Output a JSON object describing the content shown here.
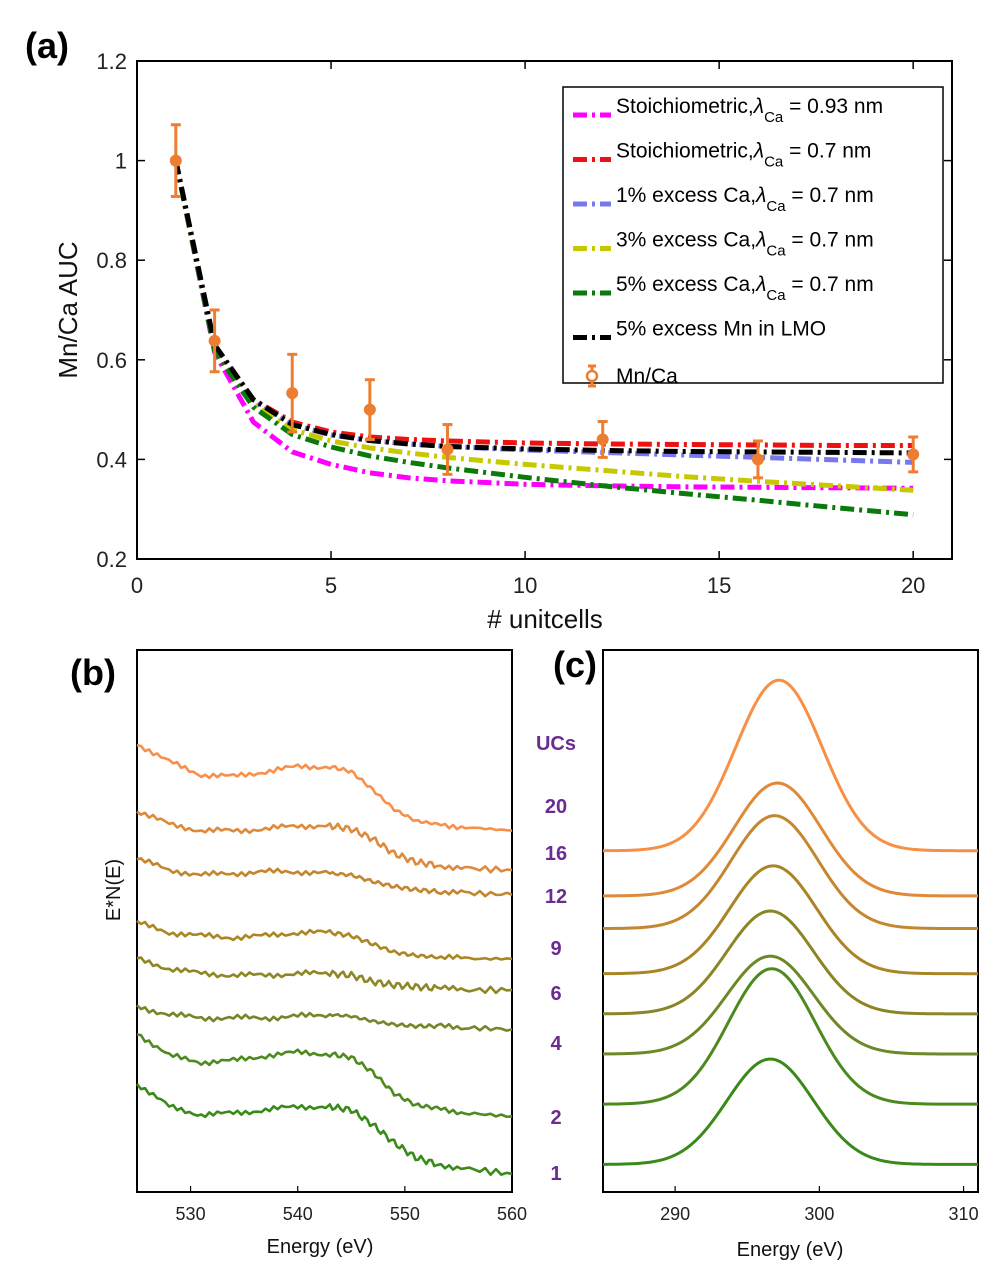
{
  "chart_data": [
    {
      "panel": "(a)",
      "type": "line",
      "xlabel": "# unitcells",
      "ylabel": "Mn/Ca AUC",
      "xlim": [
        0,
        21
      ],
      "ylim": [
        0.2,
        1.2
      ],
      "xticks": [
        "0",
        "5",
        "10",
        "15",
        "20"
      ],
      "yticks": [
        "0.2",
        "0.4",
        "0.6",
        "0.8",
        "1",
        "1.2"
      ],
      "legend_position": "top-right",
      "x": [
        1,
        2,
        3,
        4,
        5,
        6,
        7,
        8,
        10,
        12,
        14,
        16,
        18,
        20
      ],
      "series": [
        {
          "name": "Stoichiometric,",
          "lambda_label": "λ",
          "lambda_sub": "Ca",
          "lambda_value": " = 0.93 nm",
          "color": "#ff00ff",
          "values": [
            1.0,
            0.615,
            0.475,
            0.415,
            0.39,
            0.373,
            0.363,
            0.357,
            0.35,
            0.347,
            0.345,
            0.344,
            0.343,
            0.342
          ]
        },
        {
          "name": "Stoichiometric,",
          "lambda_label": "λ",
          "lambda_sub": "Ca",
          "lambda_value": " = 0.7 nm",
          "color": "#ee1111",
          "values": [
            1.0,
            0.625,
            0.52,
            0.475,
            0.455,
            0.445,
            0.44,
            0.437,
            0.433,
            0.431,
            0.43,
            0.429,
            0.428,
            0.428
          ]
        },
        {
          "name": "1% excess Ca,",
          "lambda_label": "λ",
          "lambda_sub": "Ca",
          "lambda_value": " = 0.7 nm",
          "color": "#7777ee",
          "values": [
            1.0,
            0.623,
            0.515,
            0.47,
            0.449,
            0.438,
            0.431,
            0.426,
            0.419,
            0.414,
            0.409,
            0.404,
            0.399,
            0.394
          ]
        },
        {
          "name": "3% excess Ca,",
          "lambda_label": "λ",
          "lambda_sub": "Ca",
          "lambda_value": " = 0.7 nm",
          "color": "#c8c800",
          "values": [
            1.0,
            0.62,
            0.51,
            0.46,
            0.437,
            0.423,
            0.413,
            0.404,
            0.39,
            0.378,
            0.366,
            0.356,
            0.347,
            0.338
          ]
        },
        {
          "name": "5% excess Ca,",
          "lambda_label": "λ",
          "lambda_sub": "Ca",
          "lambda_value": " = 0.7 nm",
          "color": "#0b7a0b",
          "values": [
            1.0,
            0.618,
            0.505,
            0.45,
            0.425,
            0.407,
            0.394,
            0.383,
            0.364,
            0.347,
            0.332,
            0.318,
            0.303,
            0.289
          ]
        },
        {
          "name": "5% excess Mn in LMO",
          "lambda_label": "",
          "lambda_sub": "",
          "lambda_value": "",
          "color": "#000000",
          "values": [
            1.0,
            0.63,
            0.52,
            0.47,
            0.45,
            0.438,
            0.431,
            0.426,
            0.421,
            0.418,
            0.416,
            0.415,
            0.414,
            0.413
          ]
        }
      ],
      "measured": {
        "name": "Mn/Ca",
        "color": "#ed7d31",
        "x": [
          1,
          2,
          4,
          6,
          8,
          12,
          16,
          20
        ],
        "y": [
          1.0,
          0.638,
          0.533,
          0.5,
          0.42,
          0.44,
          0.4,
          0.41
        ],
        "err": [
          0.072,
          0.062,
          0.078,
          0.06,
          0.05,
          0.036,
          0.037,
          0.035
        ]
      }
    },
    {
      "panel": "(b)",
      "type": "line",
      "xlabel": "Energy (eV)",
      "ylabel": "E*N(E)",
      "xlim": [
        525,
        560
      ],
      "xticks": [
        "530",
        "540",
        "550",
        "560"
      ],
      "spectra_offset_order": "top to bottom: 20, 16, 12, 9, 6, 4, 2, 1 unit cells",
      "energy": [
        525,
        528,
        531,
        534,
        537,
        540,
        543,
        545,
        547,
        549,
        551,
        553,
        556,
        560
      ],
      "series": [
        {
          "name": "20",
          "color": "#f7904a",
          "values": [
            24.3,
            23.2,
            22.4,
            22.3,
            22.6,
            22.9,
            22.9,
            22.6,
            21.5,
            20.3,
            19.6,
            19.4,
            19.2,
            19.0
          ]
        },
        {
          "name": "16",
          "color": "#dd8a3c",
          "values": [
            20.2,
            19.4,
            19.0,
            19.0,
            19.1,
            19.3,
            19.3,
            19.1,
            18.5,
            17.6,
            17.1,
            16.9,
            16.7,
            16.6
          ]
        },
        {
          "name": "12",
          "color": "#c3862e",
          "values": [
            17.3,
            16.6,
            16.3,
            16.4,
            16.5,
            16.5,
            16.4,
            16.3,
            15.9,
            15.6,
            15.4,
            15.3,
            15.2,
            15.1
          ]
        },
        {
          "name": "9",
          "color": "#aa8624",
          "values": [
            13.4,
            12.8,
            12.6,
            12.5,
            12.6,
            12.8,
            12.8,
            12.6,
            12.1,
            11.6,
            11.4,
            11.3,
            11.2,
            11.2
          ]
        },
        {
          "name": "6",
          "color": "#8e8726",
          "values": [
            11.2,
            10.6,
            10.3,
            10.2,
            10.2,
            10.3,
            10.3,
            10.2,
            9.8,
            9.6,
            9.5,
            9.4,
            9.3,
            9.3
          ]
        },
        {
          "name": "4",
          "color": "#728828",
          "values": [
            8.3,
            7.8,
            7.6,
            7.6,
            7.6,
            7.7,
            7.8,
            7.7,
            7.4,
            7.2,
            7.1,
            7.1,
            7.0,
            6.9
          ]
        },
        {
          "name": "2",
          "color": "#4e8a20",
          "values": [
            6.7,
            5.3,
            4.9,
            5.0,
            5.3,
            5.5,
            5.4,
            5.2,
            4.3,
            3.0,
            2.3,
            2.1,
            1.8,
            1.6
          ]
        },
        {
          "name": "1",
          "color": "#3a8a1a",
          "values": [
            3.6,
            2.2,
            1.7,
            1.8,
            2.0,
            2.2,
            2.2,
            2.0,
            1.1,
            0.0,
            -0.9,
            -1.3,
            -1.6,
            -1.9
          ]
        }
      ]
    },
    {
      "panel": "(c)",
      "type": "line",
      "xlabel": "Energy (eV)",
      "xlim": [
        285,
        311
      ],
      "xticks": [
        "290",
        "300",
        "310"
      ],
      "uc_title": "UCs",
      "energy": [
        285,
        288,
        290,
        292,
        294,
        295,
        296,
        297,
        298,
        299,
        300,
        302,
        305,
        308,
        311
      ],
      "series": [
        {
          "name": "20",
          "color": "#f79045",
          "peak": 297.2,
          "base_left": 9.6,
          "base_right": 9.6,
          "height": 6.8,
          "width": 3.0
        },
        {
          "name": "16",
          "color": "#e08a38",
          "peak": 297.1,
          "base_left": 7.8,
          "base_right": 7.8,
          "height": 4.5,
          "width": 3.0
        },
        {
          "name": "12",
          "color": "#c58630",
          "peak": 296.9,
          "base_left": 6.5,
          "base_right": 6.5,
          "height": 4.5,
          "width": 3.0
        },
        {
          "name": "9",
          "color": "#a98526",
          "peak": 296.8,
          "base_left": 4.7,
          "base_right": 4.7,
          "height": 4.3,
          "width": 3.0
        },
        {
          "name": "6",
          "color": "#8a8626",
          "peak": 296.6,
          "base_left": 3.1,
          "base_right": 3.1,
          "height": 4.1,
          "width": 3.0
        },
        {
          "name": "4",
          "color": "#6c8828",
          "peak": 296.6,
          "base_left": 1.5,
          "base_right": 1.5,
          "height": 3.9,
          "width": 3.0
        },
        {
          "name": "2",
          "color": "#4c8a20",
          "peak": 296.7,
          "base_left": -0.5,
          "base_right": -0.5,
          "height": 5.4,
          "width": 3.0
        },
        {
          "name": "1",
          "color": "#3a8a1a",
          "peak": 296.6,
          "base_left": -2.9,
          "base_right": -2.9,
          "height": 4.2,
          "width": 3.0
        }
      ]
    }
  ]
}
